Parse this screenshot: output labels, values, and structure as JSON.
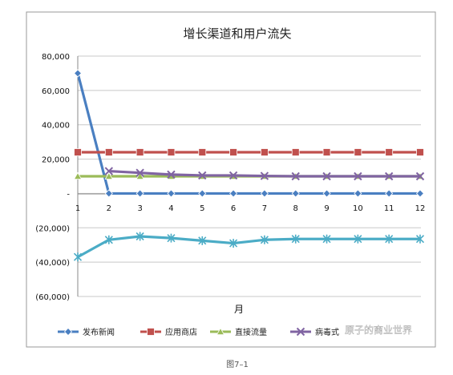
{
  "chart_data": {
    "type": "line",
    "title": "增长渠道和用户流失",
    "xlabel": "月",
    "ylabel": "",
    "categories": [
      "1",
      "2",
      "3",
      "4",
      "5",
      "6",
      "7",
      "8",
      "9",
      "10",
      "11",
      "12"
    ],
    "ylim": [
      -60000,
      80000
    ],
    "y_ticks": [
      80000,
      60000,
      40000,
      20000,
      0,
      -20000,
      -40000,
      -60000
    ],
    "y_tick_labels": [
      "80,000",
      "60,000",
      "40,000",
      "20,000",
      "-",
      "(20,000)",
      "(40,000)",
      "(60,000)"
    ],
    "grid": true,
    "legend_position": "bottom",
    "series": [
      {
        "name": "发布新闻",
        "color": "#4a7fc1",
        "marker": "diamond",
        "values": [
          70000,
          0,
          0,
          0,
          0,
          0,
          0,
          0,
          0,
          0,
          0,
          0
        ]
      },
      {
        "name": "应用商店",
        "color": "#c0504d",
        "marker": "square",
        "values": [
          24000,
          24000,
          24000,
          24000,
          24000,
          24000,
          24000,
          24000,
          24000,
          24000,
          24000,
          24000
        ]
      },
      {
        "name": "直接流量",
        "color": "#9bbb59",
        "marker": "triangle",
        "values": [
          10000,
          10000,
          10000,
          10000,
          10000,
          10000,
          10000,
          10000,
          10000,
          10000,
          10000,
          10000
        ]
      },
      {
        "name": "病毒式",
        "color": "#8064a2",
        "marker": "x",
        "values": [
          null,
          13000,
          12000,
          11000,
          10500,
          10500,
          10200,
          10000,
          10000,
          10000,
          10000,
          10000
        ]
      },
      {
        "name": "",
        "color": "#4bacc6",
        "marker": "star",
        "values": [
          -37000,
          -27000,
          -25000,
          -26000,
          -27500,
          -29000,
          -27000,
          -26500,
          -26500,
          -26500,
          -26500,
          -26500
        ]
      }
    ]
  },
  "watermark": "原子的商业世界",
  "caption": "图7–1"
}
